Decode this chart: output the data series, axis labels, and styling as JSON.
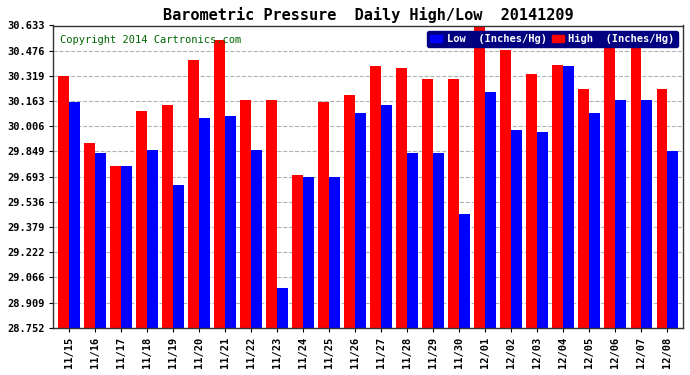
{
  "title": "Barometric Pressure  Daily High/Low  20141209",
  "copyright": "Copyright 2014 Cartronics.com",
  "legend_low": "Low  (Inches/Hg)",
  "legend_high": "High  (Inches/Hg)",
  "dates": [
    "11/15",
    "11/16",
    "11/17",
    "11/18",
    "11/19",
    "11/20",
    "11/21",
    "11/22",
    "11/23",
    "11/24",
    "11/25",
    "11/26",
    "11/27",
    "11/28",
    "11/29",
    "11/30",
    "12/01",
    "12/02",
    "12/03",
    "12/04",
    "12/05",
    "12/06",
    "12/07",
    "12/08"
  ],
  "high": [
    30.32,
    29.9,
    29.76,
    30.1,
    30.14,
    30.42,
    30.54,
    30.17,
    30.17,
    29.7,
    30.16,
    30.2,
    30.38,
    30.37,
    30.3,
    30.3,
    30.63,
    30.48,
    30.33,
    30.39,
    30.24,
    30.57,
    30.54,
    30.24
  ],
  "low": [
    30.16,
    29.84,
    29.76,
    29.86,
    29.64,
    30.06,
    30.07,
    29.86,
    29.0,
    29.69,
    29.69,
    30.09,
    30.14,
    29.84,
    29.84,
    29.46,
    30.22,
    29.98,
    29.97,
    30.38,
    30.09,
    30.17,
    30.17,
    29.85
  ],
  "ymin": 28.752,
  "ymax": 30.633,
  "yticks": [
    28.752,
    28.909,
    29.066,
    29.222,
    29.379,
    29.536,
    29.693,
    29.849,
    30.006,
    30.163,
    30.319,
    30.476,
    30.633
  ],
  "color_high": "#ff0000",
  "color_low": "#0000ff",
  "bg_color": "#ffffff",
  "grid_color": "#aaaaaa",
  "title_fontsize": 11,
  "copyright_fontsize": 7.5,
  "bar_width": 0.42
}
